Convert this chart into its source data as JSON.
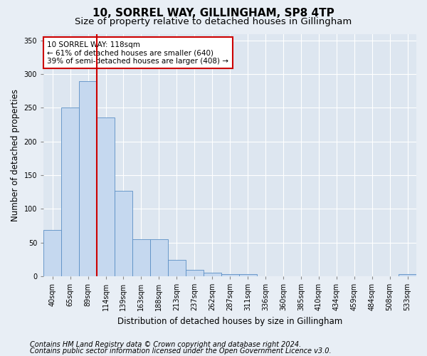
{
  "title": "10, SORREL WAY, GILLINGHAM, SP8 4TP",
  "subtitle": "Size of property relative to detached houses in Gillingham",
  "xlabel": "Distribution of detached houses by size in Gillingham",
  "ylabel": "Number of detached properties",
  "categories": [
    "40sqm",
    "65sqm",
    "89sqm",
    "114sqm",
    "139sqm",
    "163sqm",
    "188sqm",
    "213sqm",
    "237sqm",
    "262sqm",
    "287sqm",
    "311sqm",
    "336sqm",
    "360sqm",
    "385sqm",
    "410sqm",
    "434sqm",
    "459sqm",
    "484sqm",
    "508sqm",
    "533sqm"
  ],
  "values": [
    68,
    251,
    290,
    236,
    127,
    55,
    55,
    24,
    9,
    5,
    3,
    3,
    0,
    0,
    0,
    0,
    0,
    0,
    0,
    0,
    3
  ],
  "bar_color": "#c5d8ef",
  "bar_edge_color": "#5a8fc4",
  "property_line_x": 2.5,
  "property_line_color": "#cc0000",
  "annotation_line1": "10 SORREL WAY: 118sqm",
  "annotation_line2": "← 61% of detached houses are smaller (640)",
  "annotation_line3": "39% of semi-detached houses are larger (408) →",
  "annotation_box_color": "#ffffff",
  "annotation_box_edge": "#cc0000",
  "ylim": [
    0,
    360
  ],
  "yticks": [
    0,
    50,
    100,
    150,
    200,
    250,
    300,
    350
  ],
  "footer1": "Contains HM Land Registry data © Crown copyright and database right 2024.",
  "footer2": "Contains public sector information licensed under the Open Government Licence v3.0.",
  "bg_color": "#e8eef5",
  "plot_bg_color": "#dde6f0",
  "title_fontsize": 11,
  "subtitle_fontsize": 9.5,
  "axis_label_fontsize": 8.5,
  "tick_fontsize": 7,
  "annotation_fontsize": 7.5,
  "footer_fontsize": 7
}
